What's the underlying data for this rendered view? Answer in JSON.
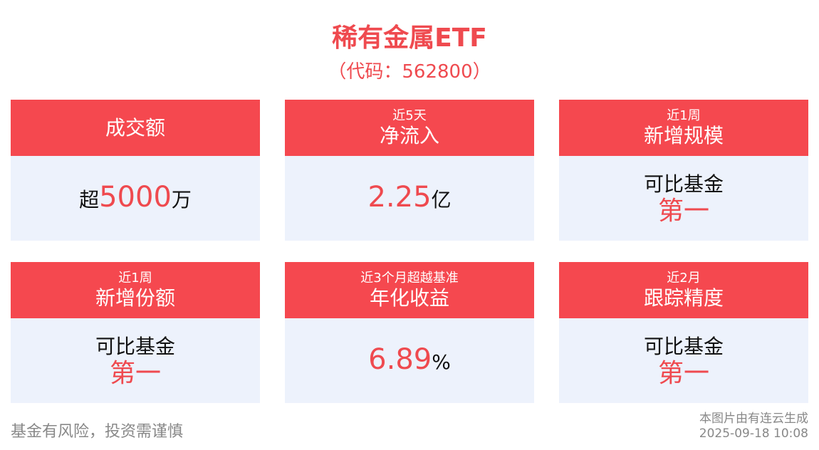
{
  "header": {
    "title": "稀有金属ETF",
    "subtitle": "（代码：562800）"
  },
  "cards": [
    {
      "label": "成交额",
      "value": {
        "prefix": "超",
        "number": "5000",
        "suffix": "万"
      }
    },
    {
      "label_small": "近5天",
      "label": "净流入",
      "value": {
        "number": "2.25",
        "suffix": "亿"
      }
    },
    {
      "label_small": "近1周",
      "label": "新增规模",
      "lines": [
        "可比基金",
        "第一"
      ]
    },
    {
      "label_small": "近1周",
      "label": "新增份额",
      "lines": [
        "可比基金",
        "第一"
      ]
    },
    {
      "label_small": "近3个月超越基准",
      "label": "年化收益",
      "value": {
        "number": "6.89",
        "suffix": "%"
      }
    },
    {
      "label_small": "近2月",
      "label": "跟踪精度",
      "lines": [
        "可比基金",
        "第一"
      ]
    }
  ],
  "footer": {
    "disclaimer": "基金有风险，投资需谨慎",
    "source": "本图片由有连云生成",
    "timestamp": "2025-09-18 10:08"
  }
}
